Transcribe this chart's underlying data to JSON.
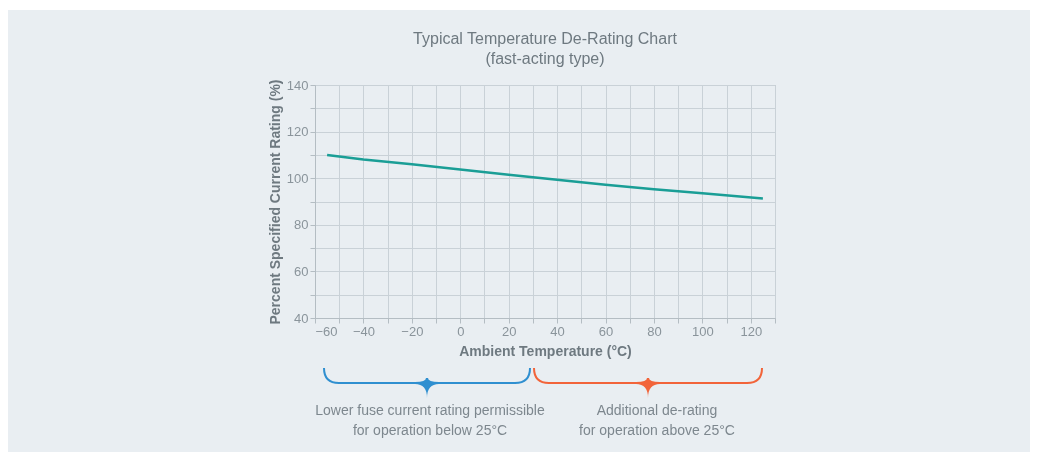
{
  "chart_data": {
    "type": "line",
    "title": "Typical Temperature De-Rating Chart",
    "subtitle": "(fast-acting type)",
    "xlabel": "Ambient Temperature (°C)",
    "ylabel": "Percent Specified Current Rating (%)",
    "x": [
      -55,
      -40,
      -20,
      0,
      20,
      40,
      60,
      80,
      100,
      125
    ],
    "series": [
      {
        "color": "#1a9e96",
        "values": [
          110,
          108,
          106,
          103.7,
          101.5,
          99.3,
          97.2,
          95.3,
          93.5,
          91.3
        ]
      }
    ],
    "xlim": [
      -60,
      130
    ],
    "xticks": [
      -60,
      {
        "value": -50,
        "label": null
      },
      -40,
      {
        "value": -30,
        "label": null
      },
      -20,
      {
        "value": -10,
        "label": null
      },
      0,
      {
        "value": 10,
        "label": null
      },
      20,
      {
        "value": 30,
        "label": null
      },
      40,
      {
        "value": 50,
        "label": null
      },
      60,
      {
        "value": 70,
        "label": null
      },
      80,
      {
        "value": 90,
        "label": null
      },
      100,
      {
        "value": 110,
        "label": null
      },
      120,
      {
        "value": 130,
        "label": null
      }
    ],
    "ylim": [
      40,
      140
    ],
    "yticks": [
      40,
      {
        "value": 50,
        "label": null
      },
      60,
      {
        "value": 70,
        "label": null
      },
      80,
      {
        "value": 90,
        "label": null
      },
      100,
      {
        "value": 110,
        "label": null
      },
      120,
      {
        "value": 130,
        "label": null
      },
      140
    ],
    "grid": true,
    "marker": "none",
    "line_style": "solid",
    "annotations": [
      "Lower fuse current rating permissible\nfor operation below 25°C",
      "Additional de-rating\nfor operation above 25°C"
    ]
  }
}
